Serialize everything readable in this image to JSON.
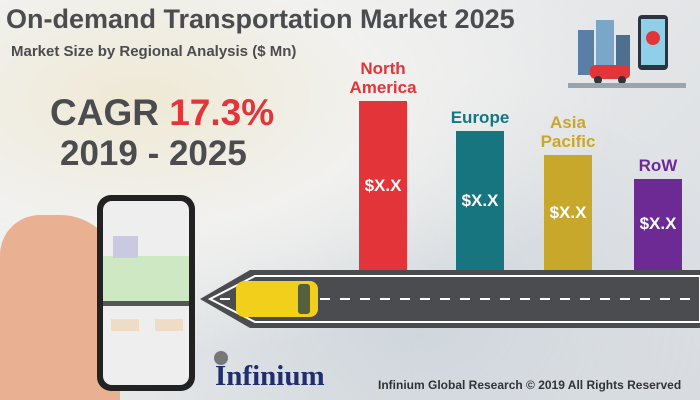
{
  "title": "On-demand Transportation Market 2025",
  "subtitle": "Market Size by Regional Analysis ($ Mn)",
  "cagr": {
    "label": "CAGR",
    "value": "17.3%",
    "period": "2019 - 2025"
  },
  "footer": {
    "logo": "Infinium",
    "copyright": "Infinium Global Research © 2019 All Rights Reserved"
  },
  "chart_data": {
    "type": "bar",
    "categories": [
      "North America",
      "Europe",
      "Asia Pacific",
      "RoW"
    ],
    "category_lines": [
      [
        "North",
        "America"
      ],
      [
        "Europe"
      ],
      [
        "Asia",
        "Pacific"
      ],
      [
        "RoW"
      ]
    ],
    "data_labels": [
      "$X.X",
      "$X.X",
      "$X.X",
      "$X.X"
    ],
    "relative_values": [
      100,
      82,
      68,
      54
    ],
    "colors": [
      "#e3343a",
      "#177580",
      "#c8a82a",
      "#6d2a95"
    ],
    "title": "Market Size by Regional Analysis ($ Mn)"
  }
}
